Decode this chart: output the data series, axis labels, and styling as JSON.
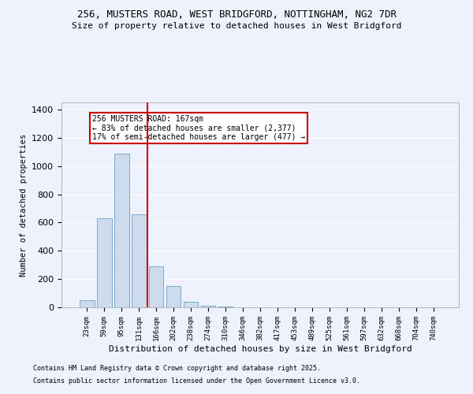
{
  "title_line1": "256, MUSTERS ROAD, WEST BRIDGFORD, NOTTINGHAM, NG2 7DR",
  "title_line2": "Size of property relative to detached houses in West Bridgford",
  "xlabel": "Distribution of detached houses by size in West Bridgford",
  "ylabel": "Number of detached properties",
  "categories": [
    "23sqm",
    "59sqm",
    "95sqm",
    "131sqm",
    "166sqm",
    "202sqm",
    "238sqm",
    "274sqm",
    "310sqm",
    "346sqm",
    "382sqm",
    "417sqm",
    "453sqm",
    "489sqm",
    "525sqm",
    "561sqm",
    "597sqm",
    "632sqm",
    "668sqm",
    "704sqm",
    "740sqm"
  ],
  "values": [
    50,
    630,
    1090,
    660,
    290,
    150,
    40,
    10,
    5,
    2,
    1,
    0,
    0,
    0,
    0,
    0,
    0,
    0,
    0,
    0,
    0
  ],
  "bar_color": "#ccdcee",
  "bar_edge_color": "#7aaac8",
  "vline_x_index": 3.5,
  "vline_color": "#cc0000",
  "annotation_text": "256 MUSTERS ROAD: 167sqm\n← 83% of detached houses are smaller (2,377)\n17% of semi-detached houses are larger (477) →",
  "annotation_box_color": "#ffffff",
  "annotation_box_edge": "#cc0000",
  "ylim": [
    0,
    1450
  ],
  "yticks": [
    0,
    200,
    400,
    600,
    800,
    1000,
    1200,
    1400
  ],
  "background_color": "#edf2fc",
  "grid_color": "#ffffff",
  "footnote1": "Contains HM Land Registry data © Crown copyright and database right 2025.",
  "footnote2": "Contains public sector information licensed under the Open Government Licence v3.0."
}
